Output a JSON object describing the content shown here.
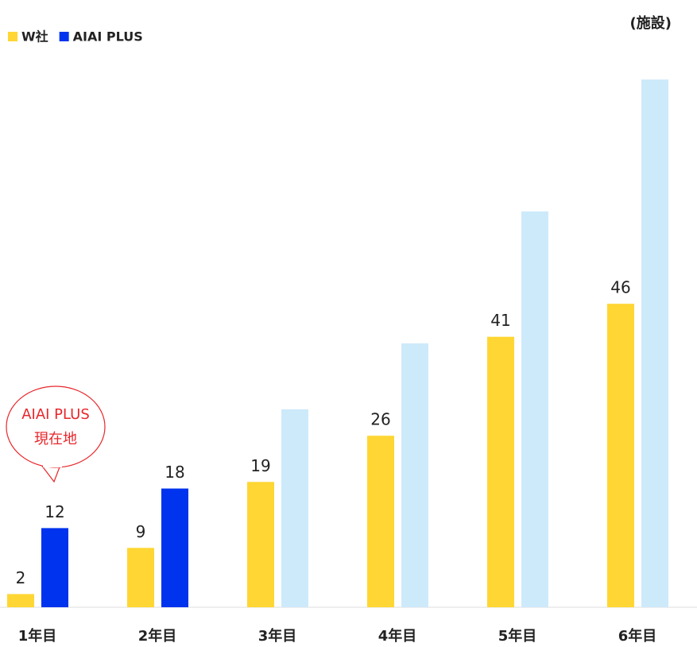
{
  "chart_data": {
    "type": "bar",
    "unit_label": "(施設)",
    "annotation": {
      "lines": [
        "AIAI PLUS",
        "現在地"
      ],
      "color": "#e8262b"
    },
    "categories": [
      "1年目",
      "2年目",
      "3年目",
      "4年目",
      "5年目",
      "6年目"
    ],
    "series": [
      {
        "name": "W社",
        "color": "#ffd633",
        "values": [
          2,
          9,
          19,
          26,
          41,
          46
        ]
      },
      {
        "name": "AIAI PLUS",
        "color": "#0033ee",
        "point_colors": [
          "#0033ee",
          "#0033ee",
          "#cdeafb",
          "#cdeafb",
          "#cdeafb",
          "#cdeafb"
        ],
        "values": [
          12,
          18,
          30,
          40,
          60,
          80
        ],
        "value_labels": [
          "12",
          "18",
          null,
          null,
          null,
          null
        ]
      }
    ],
    "ylim": [
      0,
      80
    ],
    "grid": false
  }
}
